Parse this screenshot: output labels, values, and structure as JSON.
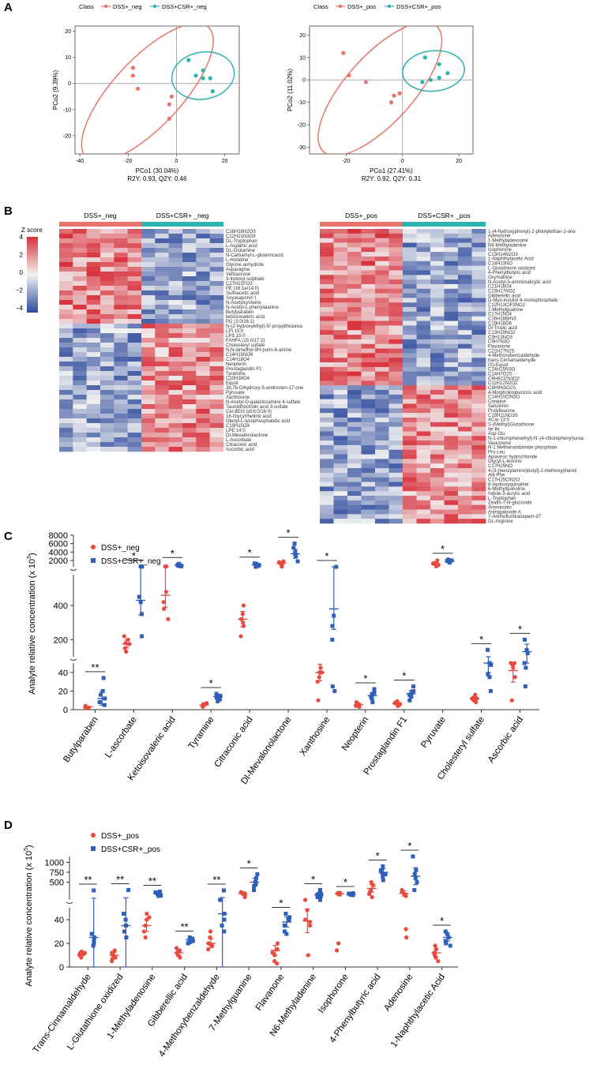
{
  "panels": {
    "A": "A",
    "B": "B",
    "C": "C",
    "D": "D"
  },
  "colors": {
    "red": "#e8756d",
    "teal": "#2bb3ad",
    "dot_red": "#e84a3f",
    "dot_blue": "#2f5fb8",
    "hm_hi": "#d7303a",
    "hm_mid": "#f2f2f2",
    "hm_lo": "#2f4b9c",
    "axis": "#999999"
  },
  "pca": [
    {
      "class_label": "Class",
      "legend": [
        "DSS+_neg",
        "DSS+CSR+_neg"
      ],
      "xlabel": "PCo1 (30.04%)",
      "ylabel": "PCo2 (9.39%)",
      "stats": "R2Y: 0.93, Q2Y: 0.46",
      "xlim": [
        -42,
        26
      ],
      "ylim": [
        -27,
        22
      ],
      "xticks": [
        -40,
        -20,
        0,
        20
      ],
      "yticks": [
        -20,
        -10,
        0,
        10,
        20
      ],
      "ellipses": [
        {
          "group": 0,
          "cx": -12,
          "cy": -3.5,
          "rx": 37,
          "ry": 13,
          "angle": -47
        },
        {
          "group": 1,
          "cx": 11,
          "cy": 3,
          "rx": 13,
          "ry": 9,
          "angle": -10
        }
      ],
      "points": [
        {
          "g": 0,
          "x": -18,
          "y": 6
        },
        {
          "g": 0,
          "x": -18,
          "y": 3
        },
        {
          "g": 0,
          "x": -16,
          "y": -2
        },
        {
          "g": 0,
          "x": -2,
          "y": -5
        },
        {
          "g": 0,
          "x": -3,
          "y": -8
        },
        {
          "g": 0,
          "x": -3,
          "y": -13.5
        },
        {
          "g": 1,
          "x": 5,
          "y": 9
        },
        {
          "g": 1,
          "x": 8,
          "y": 3
        },
        {
          "g": 1,
          "x": 11,
          "y": 5
        },
        {
          "g": 1,
          "x": 11,
          "y": 2
        },
        {
          "g": 1,
          "x": 14,
          "y": 2
        },
        {
          "g": 1,
          "x": 15,
          "y": -3
        }
      ]
    },
    {
      "class_label": "Class",
      "legend": [
        "DSS+_pos",
        "DSS+CSR+_pos"
      ],
      "xlabel": "PCo1 (27.41%)",
      "ylabel": "PCo2 (11.02%)",
      "stats": "R2Y: 0.92, Q2Y: 0.31",
      "xlim": [
        -33,
        25
      ],
      "ylim": [
        -33,
        24
      ],
      "xticks": [
        -20,
        0,
        20
      ],
      "yticks": [
        -30,
        -20,
        -10,
        0,
        10,
        20
      ],
      "ellipses": [
        {
          "group": 0,
          "cx": -8,
          "cy": -4,
          "rx": 30,
          "ry": 15,
          "angle": -48
        },
        {
          "group": 1,
          "cx": 11,
          "cy": 4,
          "rx": 11,
          "ry": 9,
          "angle": -5
        }
      ],
      "points": [
        {
          "g": 0,
          "x": -21,
          "y": 12
        },
        {
          "g": 0,
          "x": -19,
          "y": 2
        },
        {
          "g": 0,
          "x": -13,
          "y": -1
        },
        {
          "g": 0,
          "x": -3,
          "y": -7
        },
        {
          "g": 0,
          "x": -4,
          "y": -10
        },
        {
          "g": 0,
          "x": -1,
          "y": -6
        },
        {
          "g": 1,
          "x": 8,
          "y": 10
        },
        {
          "g": 1,
          "x": 7,
          "y": -1
        },
        {
          "g": 1,
          "x": 10,
          "y": 0
        },
        {
          "g": 1,
          "x": 13,
          "y": 7
        },
        {
          "g": 1,
          "x": 13,
          "y": 1
        },
        {
          "g": 1,
          "x": 16,
          "y": 3
        }
      ]
    }
  ],
  "heatmap": {
    "zscore_title": "Z score",
    "scale_ticks": [
      "4",
      "2",
      "0",
      "−2",
      "−4"
    ],
    "left": {
      "groups": [
        "DSS+_neg",
        "DSS+CSR+ _neg"
      ],
      "rows": [
        "C16H16N2O3",
        "C12H21N3O8",
        "DL-Tryptophan",
        "L-Aspartic acid",
        "DL-Glutamine",
        "N-Carbamyl-L-glutamicacid",
        "L-Histidine",
        "Glycine anhydride",
        "Asparagine",
        "Verbascose",
        "3-Indoxyl sulphate",
        "C27H21FO3",
        "PE (16:1e/14:0)",
        "Sulfoacetic acid",
        "Soyasaponin I",
        "N-Acetylcysteine",
        "N-Acetyl-L-phenylalanine",
        "Butylparaben",
        "ketoisovaleric acid",
        "PG (3:0/16:1)",
        "N-(2-hydroxyethyl)-N'-propylthiourea",
        "LPI 15:0",
        "LPS 15:0",
        "FAHFA (15:0/17:2)",
        "Cholesteryl sulfate",
        "N,N-dimethyl-9H-purin-6-amine",
        "C14H15NO4",
        "C14H18O4",
        "Neopterin",
        "Prostaglandin F1",
        "Tyramine",
        "C20H30O4",
        "Equol",
        "3b,7b-Dihydroxy-5-androsten-17-one",
        "Pyruvate",
        "Xanthosine",
        "N-Acetyl-D-galactosamine 4-sulfate",
        "Taurolithocholic acid 3-sulfate",
        "Cer-BDS (d16:0/16:0)",
        "18-Glycyrrhetinic acid",
        "Oleoyl-L-lysophosphatidic acid",
        "C19H15O4",
        "LPE 14:0",
        "DI-Mevalonolactone",
        "L-Ascorbate",
        "Citraconic acid",
        "Ascorbic acid"
      ],
      "highlight": "Pyruvate"
    },
    "right": {
      "groups": [
        "DSS+_pos",
        "DSS+CSR+ _pos"
      ],
      "rows": [
        "1-(4-hydroxyphenyl)-2-phenylethan-1-one",
        "Adenosine",
        "1-Methyladenosine",
        "N6-Methyladenine",
        "Isophorone",
        "C13H14N2O3",
        "1-Naphthylacetic Acid",
        "C14H13NO",
        "L-Glutathione oxidized",
        "4-Phenylbutyric acid",
        "Oxymatrine",
        "N-Acetyl-5-aminosalicylic acid",
        "C21H18O4",
        "C23H17NO2",
        "Gibberellic acid",
        "D-Myo-inositol 4-monophosphate",
        "C12H13ClF3NO2",
        "7-Methylguanine",
        "C17H15O4",
        "C16H18BrN3",
        "C19H18O6",
        "Dl-Tropic acid",
        "C13H19NO2",
        "C9H13NO3",
        "C9H7N3O",
        "Flavanone",
        "C22H27N2S",
        "4-Methoxybenzaldehyde",
        "trans-Cinnamaldehyde",
        "(S)-Equol",
        "C14H15N3O",
        "C14H7O2S",
        "C9H6Cl2N3O2",
        "C11H12N2O2",
        "C9H9N3O2S",
        "4-Morpholinobenzoic acid",
        "C14H10ClN3O",
        "Creatine",
        "Salsolinol",
        "Prolylleucine",
        "C15H11NO3S",
        "ACar 13:0",
        "S-(Methyl)Glutathione",
        "Ile-Ile",
        "Asp-Glu",
        "N-1-chlorophenethyl)-N'-(4-chlorophenyl)urea",
        "Vasicinone",
        "R-1 Methanandamide phosphate",
        "Pro-Leu",
        "Aplaviroc hydrochloride",
        "Glycyl-L-leucine",
        "C17H25NO",
        "4-[3-(benzylamino)butyl]-2-methoxyphenol",
        "Ala-Phe",
        "C17H25ClN2O",
        "8-Hydroxyquinoline",
        "6-Methylquinoline",
        "Indole-3-acrylic acid",
        "L-Tryptophan",
        "Zeatin-7-N-glucoside",
        "Artemisinin",
        "Astragaloside A",
        "7-Aminoflunitrazepam-d7",
        "DL-Arginine"
      ],
      "highlight": "Adenosine"
    }
  },
  "chart_data": [
    {
      "type": "scatter",
      "panel": "C",
      "ylabel": "Analyte relative concentration  (x 10",
      "ylabel_exp": "5",
      "ylabel_end": ")",
      "legend": [
        "DSS+_neg",
        "DSS+CSR+_neg"
      ],
      "segments": [
        {
          "range": [
            0,
            50
          ],
          "ticks": [
            0,
            20,
            40
          ]
        },
        {
          "range": [
            100,
            580
          ],
          "ticks": [
            200,
            400
          ]
        },
        {
          "range": [
            500,
            8000
          ],
          "ticks": [
            2000,
            4000,
            6000,
            8000
          ]
        }
      ],
      "categories": [
        "Butylparaben",
        "L-ascorbate",
        "Ketoisovaleric acid",
        "Tyramine",
        "Citraconic acid",
        "Dl-Mevalonolactone",
        "Xanthosine",
        "Neopterin",
        "Prostaglandin F1",
        "Pyruvate",
        "Cholesteryl sulfate",
        "Ascorbic acid"
      ],
      "significance": [
        "**",
        "*",
        "*",
        "*",
        "*",
        "*",
        "*",
        "*",
        "*",
        "*",
        "*",
        "*"
      ],
      "series": [
        {
          "name": "DSS+_neg",
          "values": [
            [
              2,
              3,
              4,
              3,
              4,
              2
            ],
            [
              130,
              150,
              180,
              200,
              220,
              175
            ],
            [
              380,
              320,
              420,
              480,
              550,
              600
            ],
            [
              3,
              4,
              5,
              6,
              7,
              4
            ],
            [
              220,
              300,
              350,
              400,
              320,
              280
            ],
            [
              550,
              900,
              1300,
              1600,
              1800,
              1500
            ],
            [
              10,
              30,
              35,
              40,
              45,
              40
            ],
            [
              3,
              5,
              6,
              7,
              8,
              4
            ],
            [
              4,
              5,
              7,
              8,
              6,
              9
            ],
            [
              2000,
              600,
              1300,
              1400,
              1000,
              900
            ],
            [
              8,
              10,
              12,
              14,
              16,
              12
            ],
            [
              10,
              35,
              45,
              50,
              60,
              48
            ]
          ],
          "means": [
            3,
            175,
            460,
            5,
            320,
            1300,
            40,
            5.5,
            6.5,
            1150,
            12,
            42
          ]
        },
        {
          "name": "DSS+CSR+_neg",
          "values": [
            [
              5,
              8,
              12,
              16,
              20,
              34
            ],
            [
              220,
              350,
              450,
              540,
              560,
              420
            ],
            [
              1000,
              700,
              1200,
              800,
              900,
              600
            ],
            [
              9,
              11,
              13,
              15,
              17,
              14
            ],
            [
              700,
              1000,
              1200,
              900,
              500,
              1300
            ],
            [
              1800,
              3000,
              3500,
              4000,
              5000,
              6000
            ],
            [
              20,
              25,
              200,
              280,
              340,
              500
            ],
            [
              8,
              12,
              14,
              18,
              22,
              16
            ],
            [
              10,
              14,
              16,
              20,
              25,
              18
            ],
            [
              1500,
              1800,
              2000,
              2200,
              1700,
              1900
            ],
            [
              20,
              35,
              80,
              140,
              48,
              38
            ],
            [
              25,
              200,
              120,
              60,
              45,
              140
            ]
          ],
          "means": [
            12,
            430,
            900,
            14,
            950,
            3600,
            380,
            15,
            17,
            1850,
            70,
            130
          ]
        }
      ]
    },
    {
      "type": "scatter",
      "panel": "D",
      "ylabel": "Analyte relative concentration  (x 10",
      "ylabel_exp": "5",
      "ylabel_end": ")",
      "legend": [
        "DSS+_pos",
        "DSS+CSR+_pos"
      ],
      "segments": [
        {
          "range": [
            0,
            50
          ],
          "ticks": [
            0,
            20,
            40
          ]
        },
        {
          "range": [
            50,
            1150
          ],
          "ticks": [
            500,
            750,
            1000
          ]
        }
      ],
      "categories": [
        "Trans-Cinnamaldehyde",
        "L-Glutathione oxidized",
        "1-Methyladenosine",
        "Gibberellic acid",
        "4-Methoxybenzaldehyde",
        "7-Methylguanine",
        "Flavanone",
        "N6-Methyladenine",
        "Isophorone",
        "4-Phenylbutyric acid",
        "Adenosine",
        "1-Naphthylacetic Acid"
      ],
      "significance": [
        "**",
        "**",
        "**",
        "**",
        "**",
        "*",
        "*",
        "*",
        "*",
        "*",
        "*",
        "*"
      ],
      "series": [
        {
          "name": "DSS+_pos",
          "values": [
            [
              8,
              10,
              11,
              12,
              12,
              13
            ],
            [
              5,
              7,
              8,
              10,
              12,
              14
            ],
            [
              25,
              30,
              35,
              40,
              45,
              42
            ],
            [
              8,
              10,
              12,
              14,
              16,
              13
            ],
            [
              15,
              18,
              20,
              25,
              30,
              19
            ],
            [
              120,
              160,
              200,
              240,
              250,
              220
            ],
            [
              3,
              5,
              10,
              15,
              20,
              12
            ],
            [
              10,
              35,
              40,
              50,
              48,
              38
            ],
            [
              14,
              20,
              200,
              220,
              230,
              215
            ],
            [
              120,
              200,
              260,
              420,
              500,
              300
            ],
            [
              25,
              32,
              150,
              200,
              250,
              300
            ],
            [
              5,
              8,
              12,
              15,
              18,
              10
            ]
          ],
          "means": [
            11,
            10,
            35,
            12,
            20,
            210,
            14,
            39,
            205,
            340,
            215,
            12
          ]
        },
        {
          "name": "DSS+CSR+_pos",
          "values": [
            [
              18,
              20,
              22,
              25,
              28,
              290
            ],
            [
              25,
              30,
              35,
              40,
              45,
              300
            ],
            [
              150,
              160,
              200,
              250,
              260,
              240
            ],
            [
              20,
              21,
              22,
              23,
              24,
              25
            ],
            [
              30,
              35,
              40,
              45,
              50,
              290
            ],
            [
              300,
              400,
              500,
              600,
              700,
              450
            ],
            [
              28,
              30,
              35,
              40,
              45,
              42
            ],
            [
              50,
              120,
              150,
              200,
              300,
              180
            ],
            [
              170,
              180,
              190,
              200,
              220,
              210
            ],
            [
              550,
              650,
              700,
              800,
              900,
              750
            ],
            [
              300,
              500,
              600,
              800,
              1150,
              700
            ],
            [
              18,
              20,
              22,
              25,
              28,
              30
            ]
          ],
          "means": [
            25,
            35,
            200,
            23,
            45,
            500,
            38,
            180,
            195,
            750,
            650,
            25
          ]
        }
      ]
    }
  ]
}
